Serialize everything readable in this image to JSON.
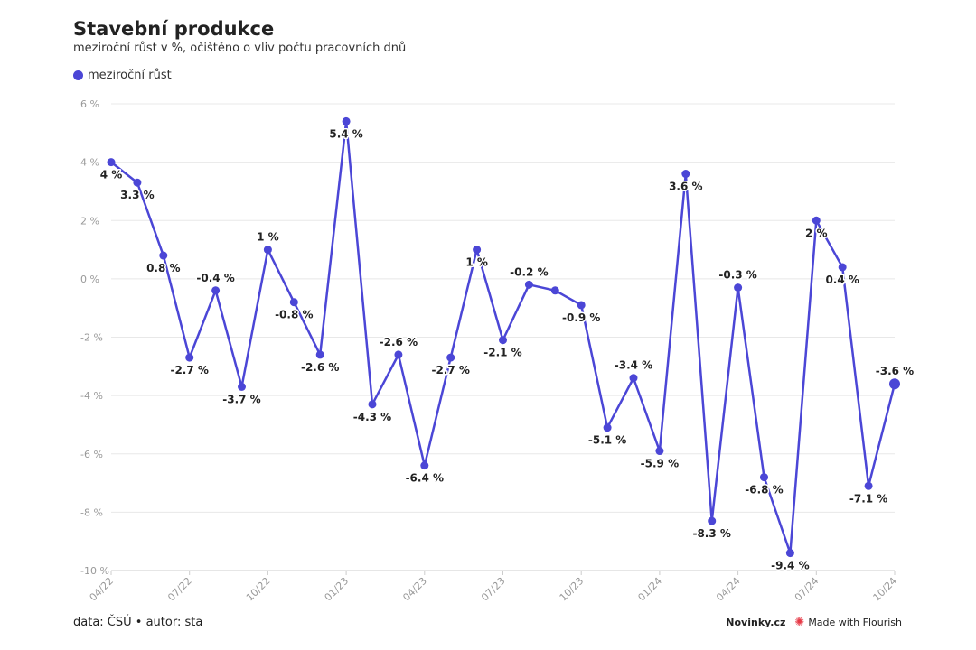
{
  "header": {
    "title": "Stavební produkce",
    "subtitle": "meziroční růst v %, očištěno o vliv počtu pracovních dnů"
  },
  "legend": {
    "label": "meziroční růst"
  },
  "footer": {
    "source": "data: ČSÚ • autor: sta",
    "brand": "Novinky.cz",
    "made_with": "Made with Flourish"
  },
  "colors": {
    "series": "#4b46d6",
    "grid": "#e8e8e8",
    "axis": "#cccccc",
    "flourish": "#e63946"
  },
  "icons": {
    "legend": "circle-marker-icon",
    "flourish": "flourish-logo-icon"
  },
  "chart_data": {
    "type": "line",
    "title": "Stavební produkce",
    "subtitle": "meziroční růst v %, očištěno o vliv počtu pracovních dnů",
    "xlabel": "",
    "ylabel": "",
    "ylim": [
      -10,
      6
    ],
    "yticks": [
      6,
      4,
      2,
      0,
      -2,
      -4,
      -6,
      -8,
      -10
    ],
    "y_tick_labels": [
      "6 %",
      "4 %",
      "2 %",
      "0 %",
      "-2 %",
      "-4 %",
      "-6 %",
      "-8 %",
      "-10 %"
    ],
    "x_tick_labels": [
      "04/22",
      "07/22",
      "10/22",
      "01/23",
      "04/23",
      "07/23",
      "10/23",
      "01/24",
      "04/24",
      "07/24",
      "10/24"
    ],
    "x_tick_positions": [
      0,
      3,
      6,
      9,
      12,
      15,
      18,
      21,
      24,
      27,
      30
    ],
    "grid": true,
    "legend_position": "top-left",
    "categories": [
      "04/22",
      "05/22",
      "06/22",
      "07/22",
      "08/22",
      "09/22",
      "10/22",
      "11/22",
      "12/22",
      "01/23",
      "02/23",
      "03/23",
      "04/23",
      "05/23",
      "06/23",
      "07/23",
      "08/23",
      "09/23",
      "10/23",
      "11/23",
      "12/23",
      "01/24",
      "02/24",
      "03/24",
      "04/24",
      "05/24",
      "06/24",
      "07/24",
      "08/24",
      "09/24",
      "10/24"
    ],
    "series": [
      {
        "name": "meziroční růst",
        "values": [
          4,
          3.3,
          0.8,
          -2.7,
          -0.4,
          -3.7,
          1,
          -0.8,
          -2.6,
          5.4,
          -4.3,
          -2.6,
          -6.4,
          -2.7,
          1,
          -2.1,
          -0.2,
          -0.4,
          -0.9,
          -5.1,
          -3.4,
          -5.9,
          3.6,
          -8.3,
          -0.3,
          -6.8,
          -9.4,
          2,
          0.4,
          -7.1,
          -3.6
        ],
        "labels": [
          "4 %",
          "3.3 %",
          "0.8 %",
          "-2.7 %",
          "-0.4 %",
          "-3.7 %",
          "1 %",
          "-0.8 %",
          "-2.6 %",
          "5.4 %",
          "-4.3 %",
          "-2.6 %",
          "-6.4 %",
          "-2.7 %",
          "1 %",
          "-2.1 %",
          "-0.2 %",
          "",
          "-0.9 %",
          "-5.1 %",
          "-3.4 %",
          "-5.9 %",
          "3.6 %",
          "-8.3 %",
          "-0.3 %",
          "-6.8 %",
          "-9.4 %",
          "2 %",
          "0.4 %",
          "-7.1 %",
          "-3.6 %"
        ]
      }
    ]
  }
}
